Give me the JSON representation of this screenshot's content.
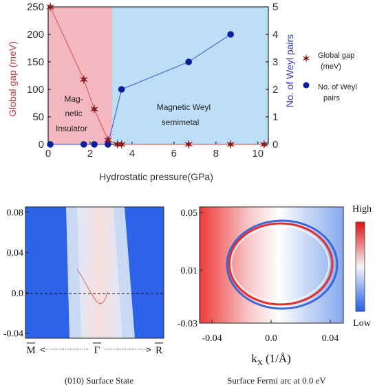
{
  "chart_data": [
    {
      "type": "scatter",
      "xlabel": "Hydrostatic pressure(GPa)",
      "ylabel_left": "Global gap (meV)",
      "ylabel_right": "No. of Weyl pairs",
      "xlim": [
        0,
        10.5
      ],
      "ylim_left": [
        0,
        250
      ],
      "ylim_right": [
        0,
        5
      ],
      "xticks": [
        "0",
        "2",
        "4",
        "6",
        "8",
        "10"
      ],
      "yticks_left": [
        "0",
        "50",
        "100",
        "150",
        "200",
        "250"
      ],
      "yticks_right": [
        "0",
        "1",
        "2",
        "3",
        "4",
        "5"
      ],
      "regions": [
        {
          "label_lines": [
            "Mag-",
            "netic",
            "Insulator"
          ],
          "x_range": [
            0,
            3.0
          ],
          "color": "#f5b8c1"
        },
        {
          "label_lines": [
            "Magnetic Weyl",
            "semimetal"
          ],
          "x_range": [
            3.0,
            10.5
          ],
          "color": "#bcdff7"
        }
      ],
      "series": [
        {
          "name": "Global gap (meV)",
          "axis": "left",
          "marker": "star",
          "color": "#8b1a1a",
          "x": [
            0.1,
            1.7,
            2.2,
            2.85,
            3.3,
            3.5,
            6.7,
            8.7,
            10.3
          ],
          "y": [
            250,
            118,
            64,
            8,
            0,
            0,
            0,
            0,
            0
          ]
        },
        {
          "name": "No. of Weyl pairs",
          "axis": "right",
          "marker": "circle",
          "color": "#0a1ea0",
          "x": [
            0.1,
            1.7,
            2.2,
            2.85,
            3.5,
            6.7,
            8.7
          ],
          "y": [
            0,
            0,
            0,
            0,
            2,
            3,
            4
          ]
        }
      ],
      "legend_position": "right"
    },
    {
      "type": "heatmap",
      "title": "(010) Surface State",
      "yticks": [
        "0.08",
        "0.04",
        "0.0",
        "-0.04"
      ],
      "ylim": [
        -0.045,
        0.085
      ],
      "k_labels": [
        "M",
        "Γ",
        "R"
      ],
      "fermi_level_line": 0.0
    },
    {
      "type": "heatmap",
      "title": "Surface Fermi arc at 0.0 eV",
      "xlabel": "k",
      "xlabel_sub": "X",
      "xlabel_unit": " (1/Å)",
      "xticks": [
        "-0.04",
        "0.0",
        "0.04"
      ],
      "yticks": [
        "0.05",
        "0.01",
        "-0.03"
      ],
      "colorbar": {
        "high": "High",
        "low": "Low"
      }
    }
  ]
}
